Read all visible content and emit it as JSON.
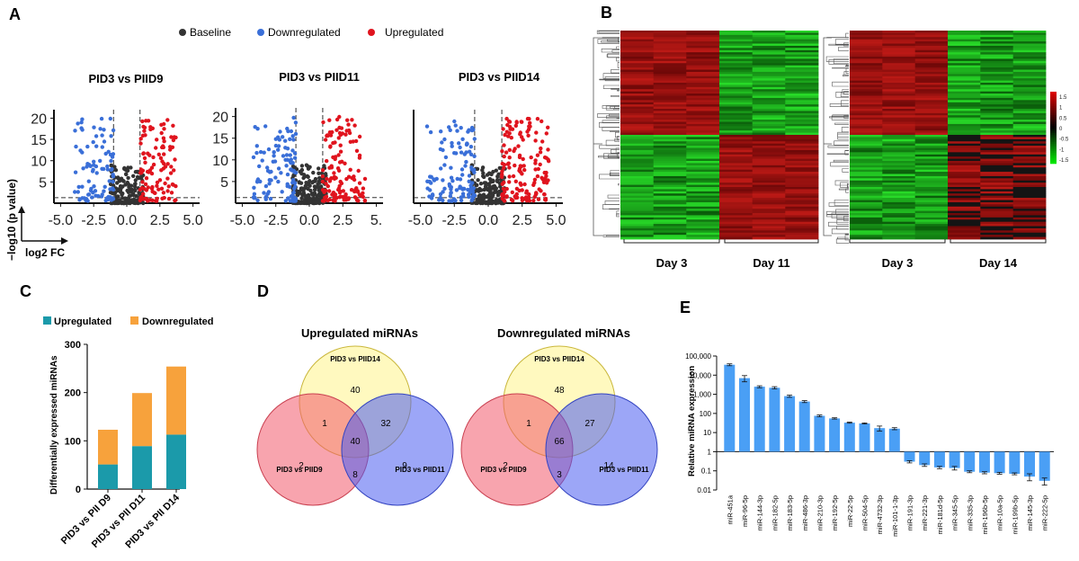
{
  "panel_labels": {
    "a": "A",
    "b": "B",
    "c": "C",
    "d": "D",
    "e": "E"
  },
  "colors": {
    "baseline": "#333333",
    "down": "#3a6fd8",
    "up": "#e0141e",
    "bar_up": "#1b9aaa",
    "bar_down": "#f7a23c",
    "bar_e": "#4a9ff5",
    "heat_red": "#a01010",
    "heat_green": "#10c010"
  },
  "chart_data": [
    {
      "id": "A",
      "type": "scatter",
      "legend": [
        {
          "label": "Baseline",
          "color": "#333333"
        },
        {
          "label": "Downregulated",
          "color": "#3a6fd8"
        },
        {
          "label": "Upregulated",
          "color": "#e0141e"
        }
      ],
      "xlabel": "log2 FC",
      "ylabel": "−log10 (p value)",
      "subplots": [
        {
          "title": "PID3 vs PIID9",
          "xlim": [
            -5.5,
            5.5
          ],
          "ylim": [
            0,
            22
          ],
          "xticks": [
            "-5.0",
            "-2.5",
            "0.0",
            "2.5",
            "5.0"
          ],
          "yticks": [
            "5",
            "10",
            "15",
            "20"
          ],
          "thresholds_x": [
            -1,
            1
          ],
          "threshold_y": 1.3,
          "n_down": 90,
          "n_up": 110,
          "n_base": 170,
          "down_range": [
            -4,
            -1
          ],
          "up_range": [
            1,
            3.8
          ]
        },
        {
          "title": "PID3 vs PIID11",
          "xlim": [
            -5.5,
            5.5
          ],
          "ylim": [
            0,
            22
          ],
          "xticks": [
            "-5.0",
            "-2.5",
            "0.0",
            "2.5",
            "5."
          ],
          "yticks": [
            "5",
            "10",
            "15",
            "20"
          ],
          "thresholds_x": [
            -1,
            1
          ],
          "threshold_y": 1.3,
          "n_down": 110,
          "n_up": 130,
          "n_base": 190,
          "down_range": [
            -4.3,
            -1
          ],
          "up_range": [
            1,
            4.2
          ]
        },
        {
          "title": "PID3 vs PIID14",
          "xlim": [
            -5.5,
            5.5
          ],
          "ylim": [
            0,
            22
          ],
          "xticks": [
            "-5.0",
            "-2.5",
            "0.0",
            "2.5",
            "5.0"
          ],
          "yticks": [],
          "thresholds_x": [
            -1,
            1
          ],
          "threshold_y": 1.3,
          "n_down": 120,
          "n_up": 150,
          "n_base": 180,
          "down_range": [
            -4.6,
            -1
          ],
          "up_range": [
            1,
            4.5
          ]
        }
      ]
    },
    {
      "id": "B",
      "type": "heatmap",
      "colorbar_ticks": [
        "1.5",
        "1",
        "0.5",
        "0",
        "-0.5",
        "-1",
        "-1.5"
      ],
      "panels": [
        {
          "groups": [
            "Day 3",
            "Day 11"
          ],
          "columns": 6,
          "top_fraction": 0.5
        },
        {
          "groups": [
            "Day 3",
            "Day 14"
          ],
          "columns": 6,
          "top_fraction": 0.5
        }
      ]
    },
    {
      "id": "C",
      "type": "bar",
      "stacked": true,
      "categories": [
        "PID3 vs PII D9",
        "PID3 vs PII D11",
        "PID3 vs PII D14"
      ],
      "series": [
        {
          "name": "Upregulated",
          "values": [
            51,
            89,
            113
          ],
          "color": "#1b9aaa"
        },
        {
          "name": "Downregulated",
          "values": [
            72,
            110,
            141
          ],
          "color": "#f7a23c"
        }
      ],
      "ylabel": "Differentially expressed miRNAs",
      "ylim": [
        0,
        300
      ],
      "yticks": [
        0,
        100,
        200,
        300
      ]
    },
    {
      "id": "D",
      "type": "venn",
      "diagrams": [
        {
          "title": "Upregulated miRNAs",
          "set_labels": {
            "top": "PID3 vs PIID14",
            "left": "PID3 vs PIID9",
            "right": "PID3 vs PIID11"
          },
          "regions": {
            "top_only": "40",
            "top_left": "1",
            "top_right": "32",
            "all": "40",
            "left_only": "2",
            "left_right": "8",
            "right_only": "9"
          }
        },
        {
          "title": "Downregulated miRNAs",
          "set_labels": {
            "top": "PID3 vs PIID14",
            "left": "PID3 vs PIID9",
            "right": "PID3 vs PIID11"
          },
          "regions": {
            "top_only": "48",
            "top_left": "1",
            "top_right": "27",
            "all": "66",
            "left_only": "2",
            "left_right": "3",
            "right_only": "14"
          }
        }
      ]
    },
    {
      "id": "E",
      "type": "bar",
      "scale": "log",
      "ylabel": "Relative miRNA expression",
      "ylim": [
        0.01,
        100000
      ],
      "yticks": [
        "0.01",
        "0.1",
        "1",
        "10",
        "100",
        "1,000",
        "10,000",
        "100,000"
      ],
      "categories": [
        "miR-451a",
        "miR-96-5p",
        "miR-144-3p",
        "miR-182-5p",
        "miR-183-5p",
        "miR-486-3p",
        "miR-210-3p",
        "miR-192-5p",
        "miR-22-5p",
        "miR-504-5p",
        "miR-4732-3p",
        "miR-101-1-3p",
        "miR-191-3p",
        "miR-221-3p",
        "miR-181d-5p",
        "miR-345-5p",
        "miR-335-3p",
        "miR-196b-5p",
        "miR-10a-5p",
        "miR-199b-5p",
        "miR-145-3p",
        "miR-222-5p"
      ],
      "values": [
        35000,
        7000,
        2500,
        2200,
        800,
        420,
        75,
        55,
        33,
        30,
        17,
        16,
        0.3,
        0.2,
        0.15,
        0.14,
        0.09,
        0.08,
        0.075,
        0.07,
        0.05,
        0.03
      ],
      "errors": [
        4000,
        2500,
        300,
        300,
        100,
        50,
        8,
        4,
        2,
        2,
        5,
        2,
        0.04,
        0.03,
        0.02,
        0.03,
        0.01,
        0.01,
        0.008,
        0.008,
        0.02,
        0.012
      ]
    }
  ]
}
